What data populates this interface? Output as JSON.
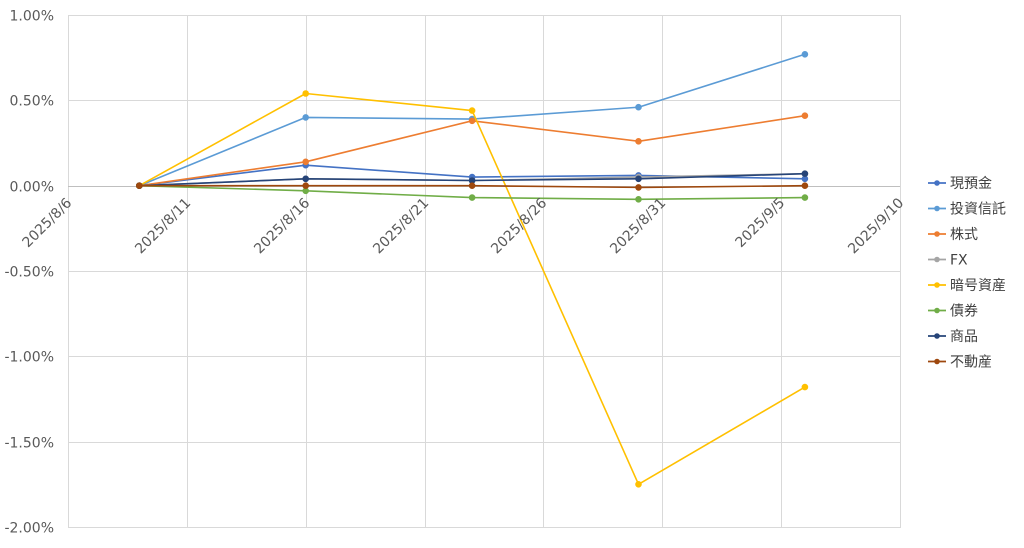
{
  "chart_data": {
    "type": "line",
    "title": "",
    "xlabel": "",
    "ylabel": "",
    "x_axis": {
      "type": "date",
      "range": [
        "2025-08-06",
        "2025-09-10"
      ],
      "ticks": [
        "2025-08-06",
        "2025-08-11",
        "2025-08-16",
        "2025-08-21",
        "2025-08-26",
        "2025-08-31",
        "2025-09-05",
        "2025-09-10"
      ],
      "tick_labels": [
        "2025/8/6",
        "2025/8/11",
        "2025/8/16",
        "2025/8/21",
        "2025/8/26",
        "2025/8/31",
        "2025/9/5",
        "2025/9/10"
      ]
    },
    "y_axis": {
      "range": [
        -0.02,
        0.01
      ],
      "ticks": [
        0.01,
        0.005,
        0,
        -0.005,
        -0.01,
        -0.015,
        -0.02
      ],
      "tick_labels": [
        "1.00%",
        "0.50%",
        "0.00%",
        "-0.50%",
        "-1.00%",
        "-1.50%",
        "-2.00%"
      ]
    },
    "grid": true,
    "legend_position": "right",
    "x": [
      "2025-08-09",
      "2025-08-16",
      "2025-08-23",
      "2025-08-30",
      "2025-09-06"
    ],
    "series": [
      {
        "name": "現預金",
        "color": "#4472C4",
        "values": [
          0,
          0.0012,
          0.0005,
          0.0006,
          0.0004
        ]
      },
      {
        "name": "投資信託",
        "color": "#5B9BD5",
        "values": [
          0,
          0.004,
          0.0039,
          0.0046,
          0.0077
        ]
      },
      {
        "name": "株式",
        "color": "#ED7D31",
        "values": [
          0,
          0.0014,
          0.0038,
          0.0026,
          0.0041
        ]
      },
      {
        "name": "FX",
        "color": "#A5A5A5",
        "values": [
          0,
          0.0004,
          0.0003,
          0.0005,
          0.0007
        ]
      },
      {
        "name": "暗号資産",
        "color": "#FFC000",
        "values": [
          0,
          0.0054,
          0.0044,
          -0.0175,
          -0.0118
        ]
      },
      {
        "name": "債券",
        "color": "#70AD47",
        "values": [
          0,
          -0.0003,
          -0.0007,
          -0.0008,
          -0.0007
        ]
      },
      {
        "name": "商品",
        "color": "#264478",
        "values": [
          0,
          0.0004,
          0.0003,
          0.0004,
          0.0007
        ]
      },
      {
        "name": "不動産",
        "color": "#9E480E",
        "values": [
          0,
          0,
          0,
          -0.0001,
          0
        ]
      }
    ]
  }
}
